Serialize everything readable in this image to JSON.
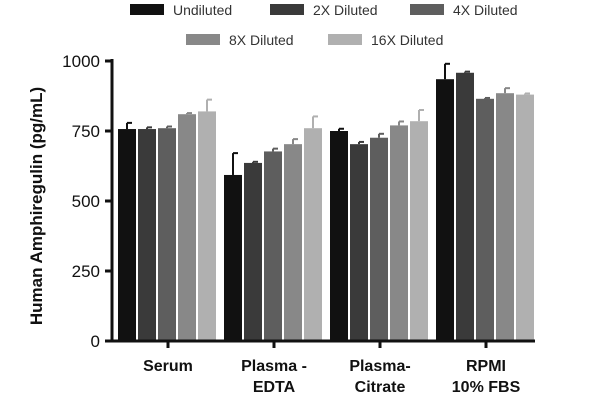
{
  "chart_data": {
    "type": "bar",
    "title": "",
    "xlabel": "",
    "ylabel": "Human  Amphiregulin (pg/mL)",
    "ylim": [
      0,
      1000
    ],
    "yticks": [
      "0",
      "250",
      "500",
      "750",
      "1000"
    ],
    "categories": [
      {
        "line1": "Serum",
        "line2": ""
      },
      {
        "line1": "Plasma -",
        "line2": "EDTA"
      },
      {
        "line1": "Plasma-",
        "line2": "Citrate"
      },
      {
        "line1": "RPMI",
        "line2": "10% FBS"
      }
    ],
    "legend_position": "top",
    "series": [
      {
        "name": "Undiluted",
        "color": "#111111",
        "values": [
          757,
          593,
          750,
          935
        ],
        "errors": [
          22,
          78,
          8,
          55
        ]
      },
      {
        "name": "2X Diluted",
        "color": "#3a3a3a",
        "values": [
          757,
          636,
          703,
          958
        ],
        "errors": [
          6,
          4,
          8,
          4
        ]
      },
      {
        "name": "4X Diluted",
        "color": "#5e5e5e",
        "values": [
          760,
          677,
          726,
          865
        ],
        "errors": [
          6,
          10,
          14,
          3
        ]
      },
      {
        "name": "8X Diluted",
        "color": "#888888",
        "values": [
          810,
          703,
          770,
          885
        ],
        "errors": [
          4,
          18,
          14,
          18
        ]
      },
      {
        "name": "16X Diluted",
        "color": "#b0b0b0",
        "values": [
          820,
          760,
          785,
          880
        ],
        "errors": [
          42,
          42,
          40,
          4
        ]
      }
    ]
  }
}
